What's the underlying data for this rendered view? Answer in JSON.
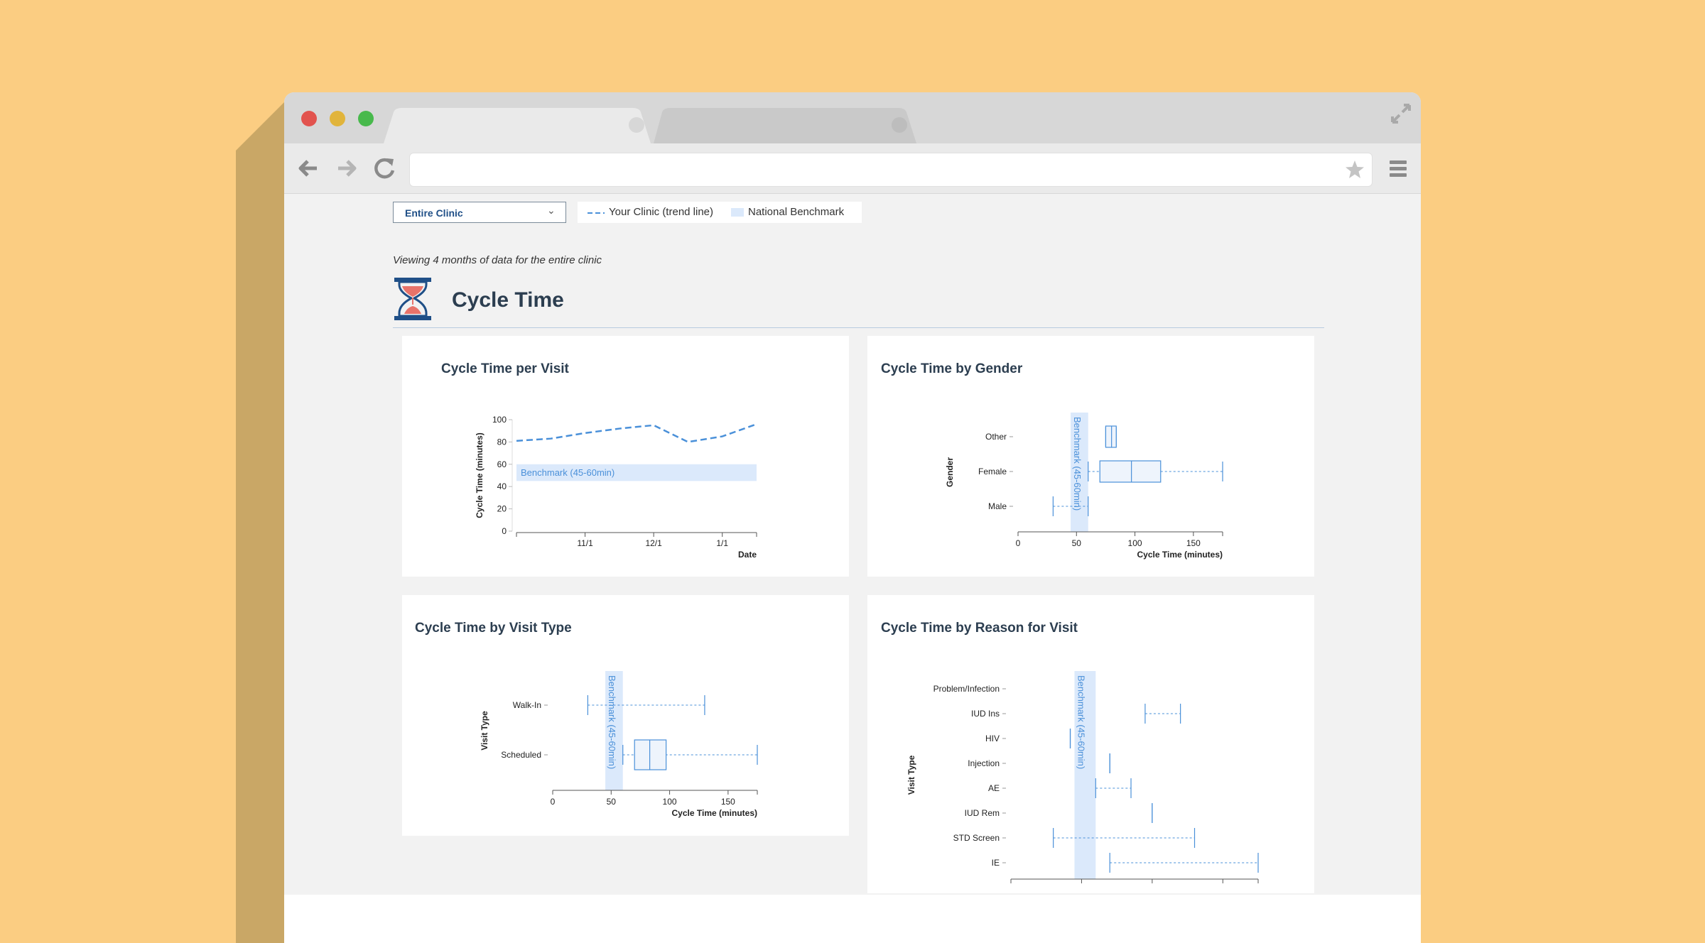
{
  "colors": {
    "background": "#FBCD82",
    "accent": "#4a90d9",
    "benchmark": "#dbe9fb",
    "title": "#2c3e50"
  },
  "controls": {
    "filter_label": "Entire Clinic",
    "legend_trend": "Your Clinic (trend line)",
    "legend_benchmark": "National Benchmark"
  },
  "subtitle": "Viewing 4 months of data for the entire clinic",
  "section": {
    "title": "Cycle Time",
    "icon": "hourglass-icon"
  },
  "cards": {
    "per_visit": {
      "title": "Cycle Time per Visit"
    },
    "by_gender": {
      "title": "Cycle Time by Gender"
    },
    "by_visit_type": {
      "title": "Cycle Time by Visit Type"
    },
    "by_reason": {
      "title": "Cycle Time by Reason for Visit"
    }
  },
  "chart_data": [
    {
      "type": "line",
      "title": "Cycle Time per Visit",
      "xlabel": "Date",
      "ylabel": "Cycle Time (minutes)",
      "ylim": [
        0,
        100
      ],
      "yticks": [
        "0",
        "20",
        "40",
        "60",
        "80",
        "100"
      ],
      "xticks": [
        "11/1",
        "12/1",
        "1/1"
      ],
      "benchmark_band": [
        45,
        60
      ],
      "benchmark_label": "Benchmark (45-60min)",
      "x": [
        "10/1",
        "10/15",
        "11/1",
        "11/15",
        "12/1",
        "12/15",
        "1/1",
        "1/15"
      ],
      "series": [
        {
          "values": [
            81,
            83,
            88,
            92,
            95,
            80,
            85,
            96
          ]
        }
      ]
    },
    {
      "type": "box",
      "title": "Cycle Time by Gender",
      "xlabel": "Cycle Time (minutes)",
      "ylabel": "Gender",
      "xlim": [
        0,
        175
      ],
      "xticks": [
        "0",
        "50",
        "100",
        "150"
      ],
      "benchmark_band": [
        45,
        60
      ],
      "benchmark_label": "Benchmark (45-60min)",
      "categories": [
        "Other",
        "Female",
        "Male"
      ],
      "boxes": [
        {
          "min": 75,
          "q1": 75,
          "median": 80,
          "q3": 84,
          "max": 84
        },
        {
          "min": 60,
          "q1": 70,
          "median": 97,
          "q3": 122,
          "max": 175
        },
        {
          "min": 30,
          "q1": 30,
          "median": 30,
          "q3": 30,
          "max": 60
        }
      ]
    },
    {
      "type": "box",
      "title": "Cycle Time by Visit Type",
      "xlabel": "Cycle Time (minutes)",
      "ylabel": "Visit Type",
      "xlim": [
        0,
        175
      ],
      "xticks": [
        "0",
        "50",
        "100",
        "150"
      ],
      "benchmark_band": [
        45,
        60
      ],
      "benchmark_label": "Benchmark (45-60min)",
      "categories": [
        "Walk-In",
        "Scheduled"
      ],
      "boxes": [
        {
          "min": 30,
          "q1": 30,
          "median": 30,
          "q3": 30,
          "max": 130
        },
        {
          "min": 60,
          "q1": 70,
          "median": 83,
          "q3": 97,
          "max": 175
        }
      ]
    },
    {
      "type": "box",
      "title": "Cycle Time by Reason for Visit",
      "ylabel": "Visit Type",
      "xlim": [
        0,
        175
      ],
      "benchmark_band": [
        45,
        60
      ],
      "benchmark_label": "Benchmark (45-60min)",
      "categories": [
        "Problem/Infection",
        "IUD Ins",
        "HIV",
        "Injection",
        "AE",
        "IUD Rem",
        "STD Screen",
        "IE"
      ],
      "boxes": [
        null,
        {
          "min": 95,
          "q1": 95,
          "median": 95,
          "q3": 95,
          "max": 120
        },
        {
          "min": 42,
          "q1": 42,
          "median": 42,
          "q3": 42,
          "max": 42
        },
        {
          "min": 70,
          "q1": 70,
          "median": 70,
          "q3": 70,
          "max": 70
        },
        {
          "min": 60,
          "q1": 60,
          "median": 60,
          "q3": 60,
          "max": 85
        },
        {
          "min": 100,
          "q1": 100,
          "median": 100,
          "q3": 100,
          "max": 100
        },
        {
          "min": 30,
          "q1": 30,
          "median": 30,
          "q3": 30,
          "max": 130
        },
        {
          "min": 70,
          "q1": 70,
          "median": 70,
          "q3": 70,
          "max": 175
        }
      ]
    }
  ]
}
